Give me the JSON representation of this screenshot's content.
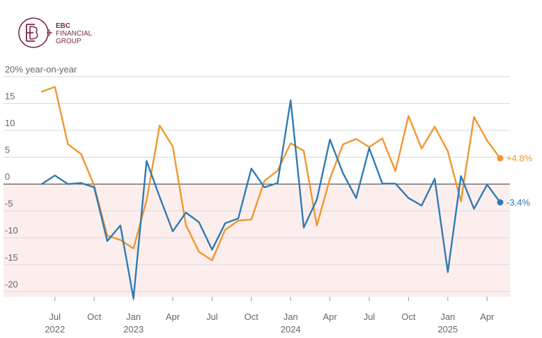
{
  "logo": {
    "name": "EBC FINANCIAL GROUP",
    "line1": "EBC",
    "line2": "FINANCIAL",
    "line3": "GROUP"
  },
  "colors": {
    "orange": "#f0962e",
    "blue": "#2e7bb4",
    "grid": "#d9d9d9",
    "negative_band": "#fdeeee",
    "zero_line": "#333333",
    "logo": "#7a2a45"
  },
  "chart_data": {
    "type": "line",
    "ylabel": "year-on-year",
    "y_top_label": "20% year-on-year",
    "ylim": [
      -21,
      20
    ],
    "yticks": [
      {
        "value": 15,
        "label": "15"
      },
      {
        "value": 10,
        "label": "10"
      },
      {
        "value": 5,
        "label": "5"
      },
      {
        "value": 0,
        "label": "0"
      },
      {
        "value": -5,
        "label": "-5"
      },
      {
        "value": -10,
        "label": "-10"
      },
      {
        "value": -15,
        "label": "-15"
      },
      {
        "value": -20,
        "label": "-20"
      }
    ],
    "x": [
      "2022-06",
      "2022-07",
      "2022-08",
      "2022-09",
      "2022-10",
      "2022-11",
      "2022-12",
      "2023-01",
      "2023-02",
      "2023-03",
      "2023-04",
      "2023-05",
      "2023-06",
      "2023-07",
      "2023-08",
      "2023-09",
      "2023-10",
      "2023-11",
      "2023-12",
      "2024-01",
      "2024-02",
      "2024-03",
      "2024-04",
      "2024-05",
      "2024-06",
      "2024-07",
      "2024-08",
      "2024-09",
      "2024-10",
      "2024-11",
      "2024-12",
      "2025-01",
      "2025-02",
      "2025-03",
      "2025-04",
      "2025-05"
    ],
    "xticks": [
      {
        "x": "2022-07",
        "label": "Jul",
        "year": "2022"
      },
      {
        "x": "2022-10",
        "label": "Oct",
        "year": ""
      },
      {
        "x": "2023-01",
        "label": "Jan",
        "year": "2023"
      },
      {
        "x": "2023-04",
        "label": "Apr",
        "year": ""
      },
      {
        "x": "2023-07",
        "label": "Jul",
        "year": ""
      },
      {
        "x": "2023-10",
        "label": "Oct",
        "year": ""
      },
      {
        "x": "2024-01",
        "label": "Jan",
        "year": "2024"
      },
      {
        "x": "2024-04",
        "label": "Apr",
        "year": ""
      },
      {
        "x": "2024-07",
        "label": "Jul",
        "year": ""
      },
      {
        "x": "2024-10",
        "label": "Oct",
        "year": ""
      },
      {
        "x": "2025-01",
        "label": "Jan",
        "year": "2025"
      },
      {
        "x": "2025-04",
        "label": "Apr",
        "year": ""
      }
    ],
    "series": [
      {
        "color": "#f0962e",
        "end_label": "+4.8%",
        "values": [
          17.2,
          18.1,
          7.4,
          5.6,
          -0.3,
          -9.6,
          -10.4,
          -12.0,
          -3.0,
          10.9,
          7.0,
          -7.6,
          -12.6,
          -14.2,
          -8.5,
          -6.8,
          -6.6,
          0.6,
          2.5,
          7.6,
          6.2,
          -7.7,
          1.0,
          7.4,
          8.4,
          6.9,
          8.5,
          2.4,
          12.7,
          6.6,
          10.7,
          6.1,
          -3.2,
          12.5,
          8.1,
          4.8
        ]
      },
      {
        "color": "#2e7bb4",
        "end_label": "-3.4%",
        "values": [
          0.0,
          1.6,
          0.0,
          0.2,
          -0.6,
          -10.6,
          -7.7,
          -21.3,
          4.3,
          -2.4,
          -8.8,
          -5.3,
          -7.1,
          -12.2,
          -7.3,
          -6.4,
          2.9,
          -0.6,
          0.2,
          15.6,
          -8.1,
          -2.9,
          8.3,
          2.0,
          -2.6,
          6.7,
          0.1,
          0.1,
          -2.6,
          -4.0,
          1.0,
          -16.4,
          1.5,
          -4.6,
          -0.1,
          -3.4
        ]
      }
    ],
    "grid": true,
    "negative_shading": true
  }
}
